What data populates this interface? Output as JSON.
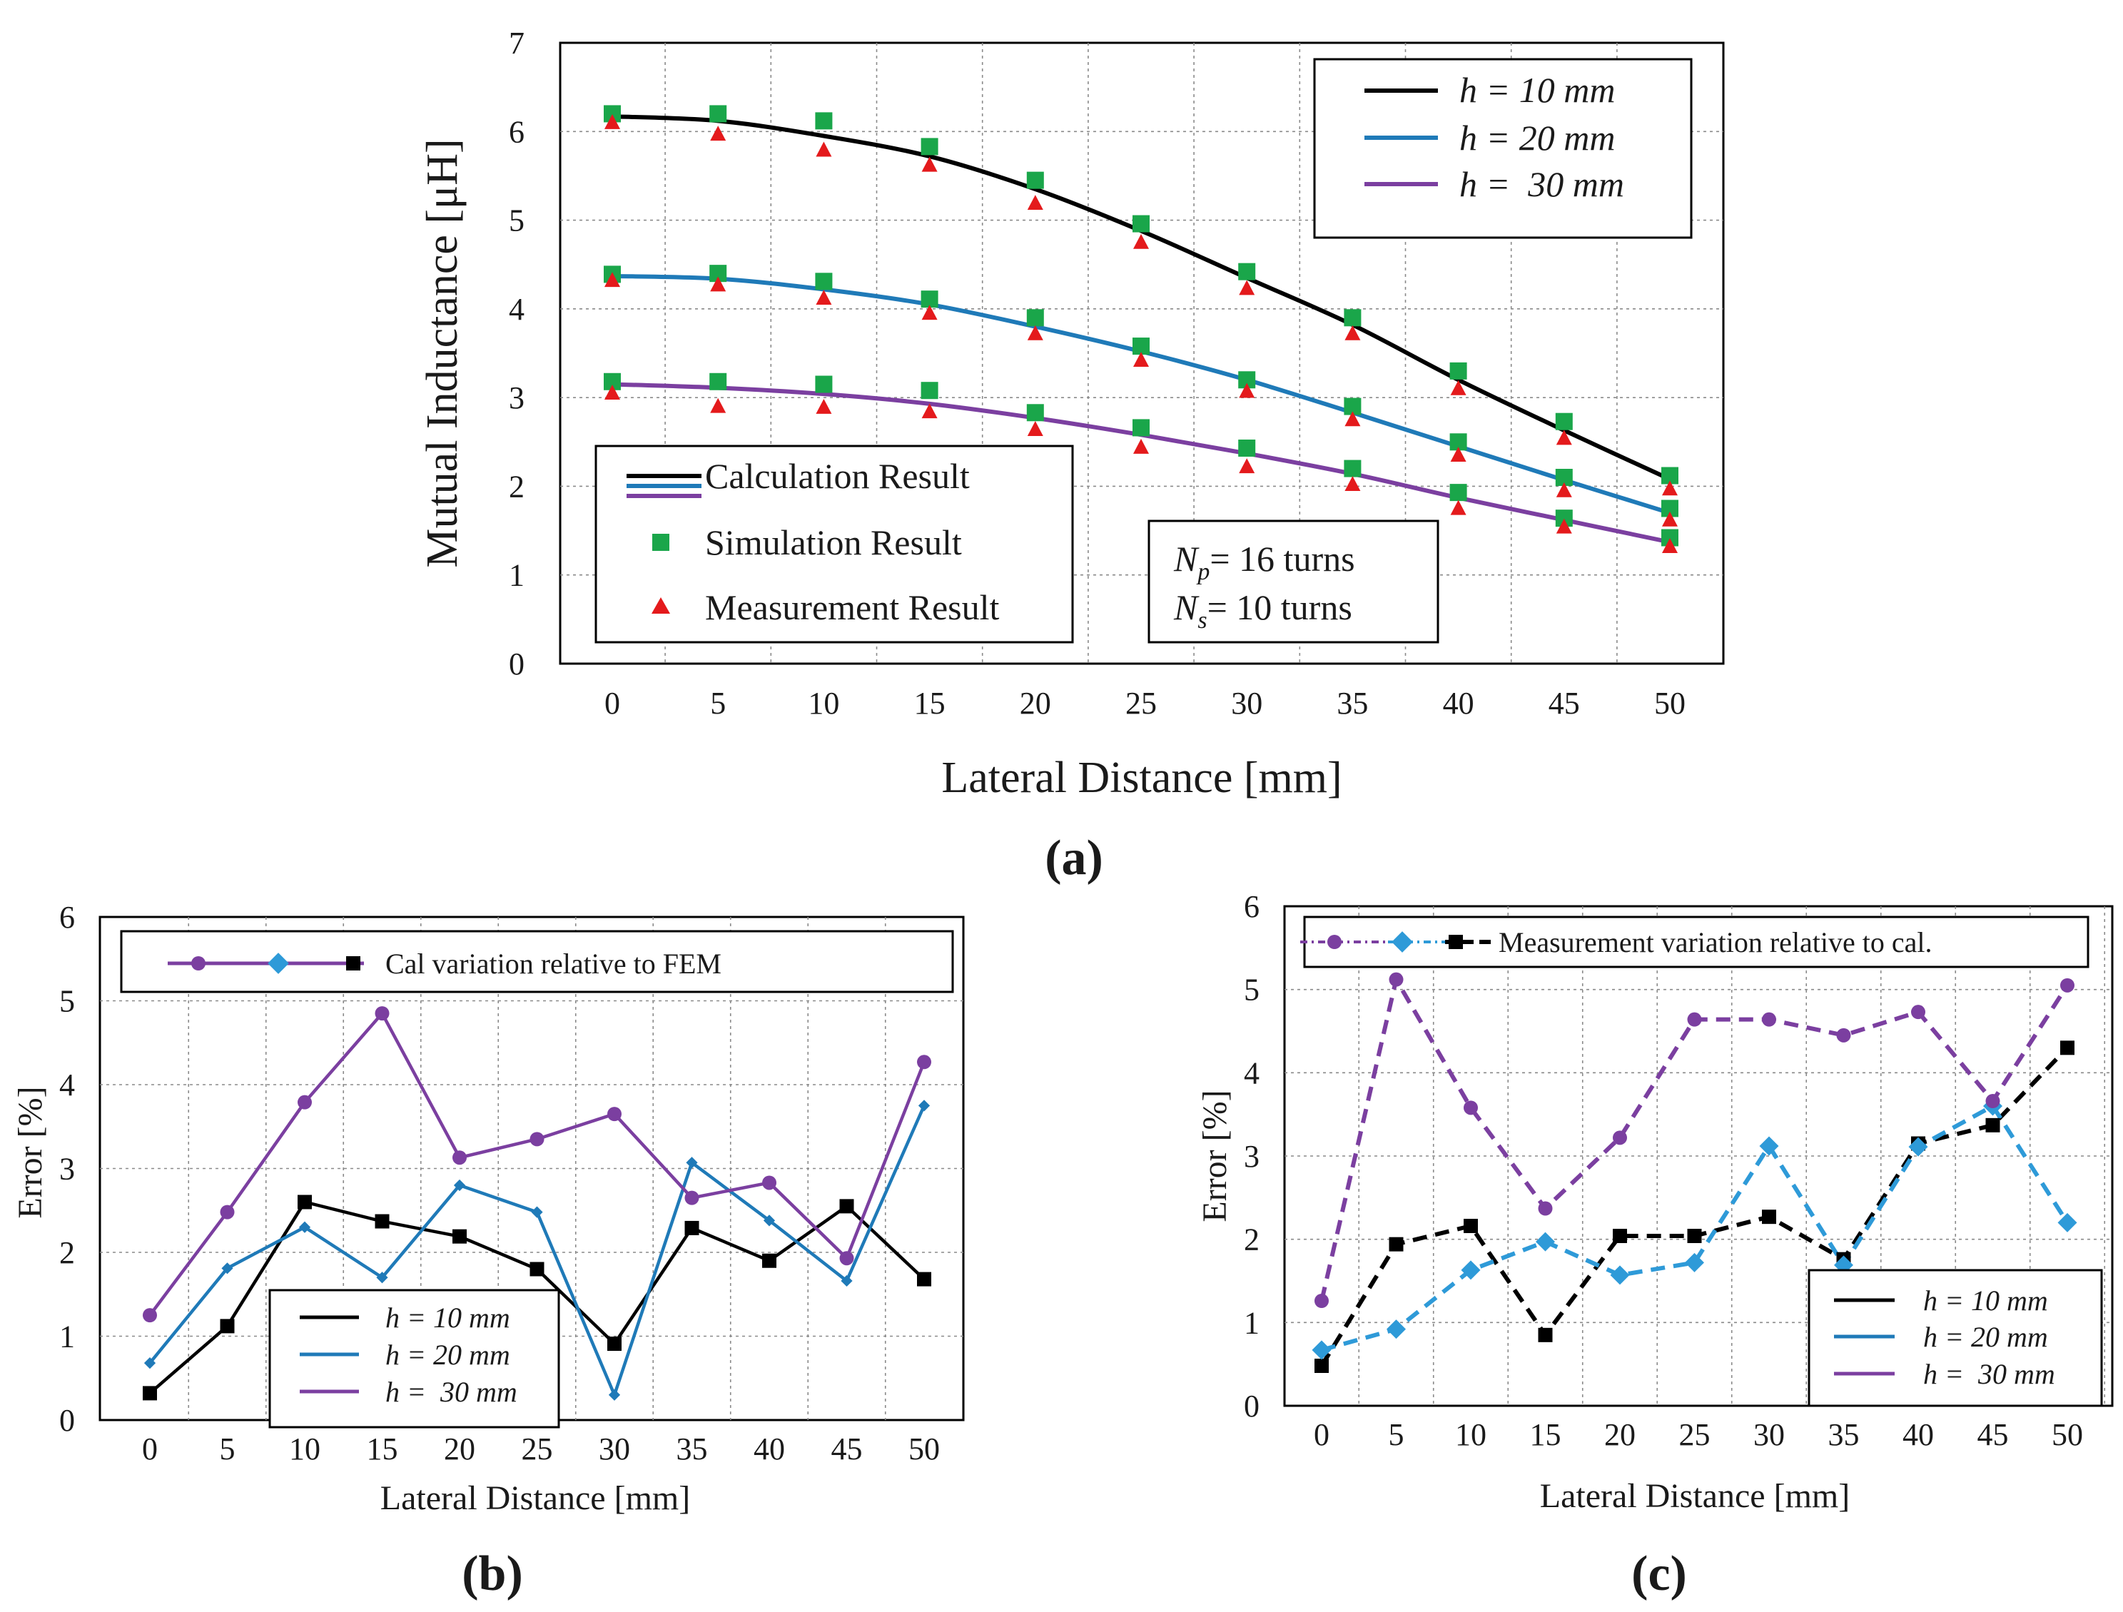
{
  "colors": {
    "h10": "#000000",
    "h20": "#1f7ab8",
    "h30": "#7b3fa0",
    "h20_marker_c": "#2e9ad8",
    "simulation": "#1aa64a",
    "measurement": "#e41a1c",
    "grid": "#8a8a8a"
  },
  "icons": {
    "simulation_marker": "square",
    "measurement_marker": "triangle",
    "h30_marker": "circle",
    "h20_marker": "diamond",
    "h10_marker": "square"
  },
  "chart_data": [
    {
      "id": "a",
      "panel_label": "(a)",
      "type": "line",
      "xlabel": "Lateral Distance [mm]",
      "ylabel": "Mutual Inductance [μH]",
      "x": [
        0,
        5,
        10,
        15,
        20,
        25,
        30,
        35,
        40,
        45,
        50
      ],
      "xlim": [
        0,
        50
      ],
      "ylim": [
        0,
        7
      ],
      "yticks": [
        "0",
        "1",
        "2",
        "3",
        "4",
        "5",
        "6",
        "7"
      ],
      "xticks": [
        "0",
        "5",
        "10",
        "15",
        "20",
        "25",
        "30",
        "35",
        "40",
        "45",
        "50"
      ],
      "grid": true,
      "series": [
        {
          "name": "h = 10 mm",
          "key": "h10",
          "calculation": [
            6.17,
            6.12,
            5.95,
            5.72,
            5.35,
            4.88,
            4.35,
            3.82,
            3.2,
            2.63,
            2.08
          ],
          "simulation": [
            6.2,
            6.2,
            6.12,
            5.83,
            5.45,
            4.96,
            4.42,
            3.9,
            3.3,
            2.73,
            2.12
          ],
          "measurement": [
            6.13,
            6.0,
            5.82,
            5.65,
            5.22,
            4.78,
            4.26,
            3.75,
            3.13,
            2.57,
            2.0
          ]
        },
        {
          "name": "h = 20 mm",
          "key": "h20",
          "calculation": [
            4.37,
            4.34,
            4.22,
            4.05,
            3.8,
            3.52,
            3.2,
            2.83,
            2.45,
            2.07,
            1.7
          ],
          "simulation": [
            4.39,
            4.4,
            4.31,
            4.11,
            3.9,
            3.58,
            3.2,
            2.9,
            2.5,
            2.1,
            1.75
          ],
          "measurement": [
            4.35,
            4.3,
            4.15,
            3.98,
            3.75,
            3.45,
            3.1,
            2.78,
            2.38,
            1.98,
            1.65
          ]
        },
        {
          "name": "h = 30 mm",
          "key": "h30",
          "calculation": [
            3.15,
            3.11,
            3.04,
            2.93,
            2.77,
            2.58,
            2.37,
            2.14,
            1.87,
            1.62,
            1.37
          ],
          "simulation": [
            3.18,
            3.18,
            3.15,
            3.08,
            2.83,
            2.66,
            2.43,
            2.2,
            1.93,
            1.64,
            1.42
          ],
          "measurement": [
            3.08,
            2.93,
            2.92,
            2.87,
            2.67,
            2.47,
            2.25,
            2.05,
            1.78,
            1.57,
            1.35
          ]
        }
      ],
      "legend_series": [
        "h = 10 mm",
        "h = 20 mm",
        "h =  30 mm"
      ],
      "legend_series_placement": "top-right",
      "legend_methods": [
        "Calculation Result",
        "Simulation Result",
        "Measurement Result"
      ],
      "legend_methods_placement": "bottom-left",
      "annotation": {
        "np_text": "= 16 turns",
        "ns_text": "= 10 turns"
      }
    },
    {
      "id": "b",
      "panel_label": "(b)",
      "type": "line",
      "xlabel": "Lateral Distance [mm]",
      "ylabel": "Error [%]",
      "x": [
        0,
        5,
        10,
        15,
        20,
        25,
        30,
        35,
        40,
        45,
        50
      ],
      "xlim": [
        0,
        50
      ],
      "ylim": [
        0,
        6
      ],
      "yticks": [
        "0",
        "1",
        "2",
        "3",
        "4",
        "5",
        "6"
      ],
      "xticks": [
        "0",
        "5",
        "10",
        "15",
        "20",
        "25",
        "30",
        "35",
        "40",
        "45",
        "50"
      ],
      "grid": true,
      "title_legend": "Cal variation relative to FEM",
      "series": [
        {
          "name": "h = 10 mm",
          "key": "h10",
          "values": [
            0.32,
            1.12,
            2.6,
            2.37,
            2.19,
            1.8,
            0.91,
            2.29,
            1.9,
            2.55,
            1.68
          ]
        },
        {
          "name": "h = 20 mm",
          "key": "h20",
          "values": [
            0.68,
            1.81,
            2.3,
            1.7,
            2.8,
            2.48,
            0.3,
            3.07,
            2.38,
            1.66,
            3.75
          ]
        },
        {
          "name": "h = 30 mm",
          "key": "h30",
          "values": [
            1.25,
            2.48,
            3.79,
            4.85,
            3.13,
            3.35,
            3.65,
            2.65,
            2.83,
            1.93,
            4.27
          ]
        }
      ],
      "legend_series": [
        "h = 10 mm",
        "h = 20 mm",
        "h =  30 mm"
      ],
      "legend_placement": "bottom-left"
    },
    {
      "id": "c",
      "panel_label": "(c)",
      "type": "line",
      "xlabel": "Lateral Distance [mm]",
      "ylabel": "Error [%]",
      "x": [
        0,
        5,
        10,
        15,
        20,
        25,
        30,
        35,
        40,
        45,
        50
      ],
      "xlim": [
        0,
        50
      ],
      "ylim": [
        0,
        6
      ],
      "yticks": [
        "0",
        "1",
        "2",
        "3",
        "4",
        "5",
        "6"
      ],
      "xticks": [
        "0",
        "5",
        "10",
        "15",
        "20",
        "25",
        "30",
        "35",
        "40",
        "45",
        "50"
      ],
      "grid": true,
      "title_legend": "Measurement variation relative to cal.",
      "series": [
        {
          "name": "h = 10 mm",
          "key": "h10",
          "values": [
            0.48,
            1.94,
            2.16,
            0.85,
            2.04,
            2.04,
            2.27,
            1.76,
            3.15,
            3.37,
            4.3
          ]
        },
        {
          "name": "h = 20 mm",
          "key": "h20",
          "values": [
            0.67,
            0.92,
            1.63,
            1.97,
            1.57,
            1.72,
            3.12,
            1.69,
            3.11,
            3.6,
            2.2
          ]
        },
        {
          "name": "h = 30 mm",
          "key": "h30",
          "values": [
            1.26,
            5.12,
            3.58,
            2.37,
            3.22,
            4.64,
            4.64,
            4.45,
            4.73,
            3.66,
            5.05
          ]
        }
      ],
      "legend_series": [
        "h = 10 mm",
        "h = 20 mm",
        "h =  30 mm"
      ],
      "legend_placement": "bottom-right"
    }
  ]
}
